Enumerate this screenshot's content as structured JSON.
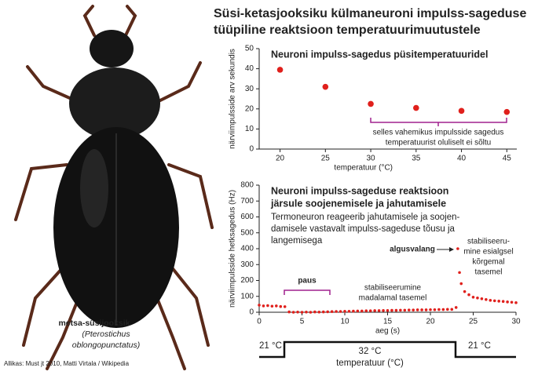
{
  "title": [
    "Süsi-ketasjooksiku külmaneuroni impulss-sageduse",
    "tüüpiline reaktsioon temperatuurimuutustele"
  ],
  "photo": {
    "caption": "metsa-süsijooksik",
    "species": [
      "(Pterostichus",
      "oblongopunctatus)"
    ]
  },
  "credit": "Allikas: Must jt 2010, Matti Virtala / Wikipedia",
  "temperature_strip": {
    "labels": [
      "21 °C",
      "32 °C",
      "21 °C"
    ],
    "axis_label": "temperatuur (°C)"
  },
  "chart_data": [
    {
      "type": "scatter",
      "title": "Neuroni impulss-sagedus püsitemperatuuridel",
      "x": [
        20,
        25,
        30,
        35,
        40,
        45
      ],
      "values": [
        39.5,
        31,
        22.5,
        20.5,
        19,
        18.5
      ],
      "color": "#e0201c",
      "xlim": [
        17.7,
        46.1
      ],
      "xticks": [
        20,
        25,
        30,
        35,
        40,
        45
      ],
      "ylim": [
        0,
        50
      ],
      "yticks": [
        0,
        10,
        20,
        30,
        40,
        50
      ],
      "xlabel": "temperatuur (°C)",
      "ylabel": "närviimpulsside arv sekundis",
      "annotations": [
        "selles vahemikus impulsside sagedus",
        "temperatuurist oluliselt ei sõltu"
      ]
    },
    {
      "type": "scatter",
      "title": [
        "Neuroni impulss-sageduse reaktsioon",
        "järsule soojenemisele ja jahutamisele"
      ],
      "description": [
        "Termoneuron reageerib jahutamisele ja soojen-",
        "damisele vastavalt impulss-sageduse tõusu ja",
        "langemisega"
      ],
      "x": [
        0,
        0.5,
        1,
        1.5,
        2,
        2.5,
        3,
        3.5,
        4,
        4.5,
        5,
        5.5,
        6,
        6.5,
        7,
        7.5,
        8,
        8.5,
        9,
        9.5,
        10,
        10.5,
        11,
        11.5,
        12,
        12.5,
        13,
        13.5,
        14,
        14.5,
        15,
        15.5,
        16,
        16.5,
        17,
        17.5,
        18,
        18.5,
        19,
        19.5,
        20,
        20.5,
        21,
        21.5,
        22,
        22.5,
        23,
        23.2,
        23.4,
        23.6,
        24,
        24.5,
        25,
        25.5,
        26,
        26.5,
        27,
        27.5,
        28,
        28.5,
        29,
        29.5,
        30
      ],
      "values": [
        45,
        40,
        42,
        38,
        40,
        36,
        35,
        2,
        0,
        1,
        0,
        1,
        0,
        2,
        1,
        2,
        3,
        4,
        5,
        5,
        6,
        6,
        7,
        8,
        8,
        9,
        9,
        10,
        10,
        11,
        11,
        12,
        12,
        13,
        13,
        14,
        14,
        15,
        15,
        15,
        16,
        16,
        17,
        17,
        18,
        18,
        30,
        400,
        250,
        180,
        130,
        110,
        95,
        90,
        85,
        80,
        75,
        72,
        70,
        68,
        65,
        63,
        60
      ],
      "color": "#e0201c",
      "xlim": [
        0,
        30
      ],
      "xticks": [
        0,
        5,
        10,
        15,
        20,
        25,
        30
      ],
      "ylim": [
        0,
        800
      ],
      "yticks": [
        0,
        100,
        200,
        300,
        400,
        500,
        600,
        700,
        800
      ],
      "xlabel": "aeg (s)",
      "ylabel": "närviimpulsside hetksagedus (Hz)",
      "annotations": [
        "paus",
        "stabiliseerumine",
        "madalamal tasemel",
        "algusvalang",
        "stabiliseeru-",
        "mine esialgsel",
        "kõrgemal",
        "tasemel"
      ]
    }
  ]
}
